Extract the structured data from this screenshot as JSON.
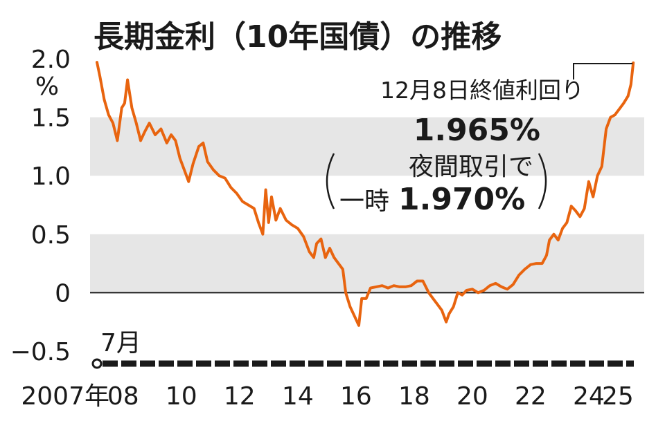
{
  "chart_data": {
    "type": "line",
    "title": "長期金利（10年国債）の推移",
    "ylabel": "%",
    "ylim": [
      -0.5,
      2.0
    ],
    "y_ticks": [
      "2.0",
      "1.5",
      "1.0",
      "0.5",
      "0",
      "−0.5"
    ],
    "y_tick_values": [
      2.0,
      1.5,
      1.0,
      0.5,
      0,
      -0.5
    ],
    "shaded_bands": [
      [
        1.0,
        1.5
      ],
      [
        0.0,
        0.5
      ]
    ],
    "x_start_label": "7月",
    "x_range": [
      2007.5,
      2025.95
    ],
    "x_ticks": [
      {
        "label": "2007年",
        "value": 2007.5
      },
      {
        "label": "08",
        "value": 2008.4
      },
      {
        "label": "10",
        "value": 2010.4
      },
      {
        "label": "12",
        "value": 2012.4
      },
      {
        "label": "14",
        "value": 2014.4
      },
      {
        "label": "16",
        "value": 2016.4
      },
      {
        "label": "18",
        "value": 2018.4
      },
      {
        "label": "20",
        "value": 2020.4
      },
      {
        "label": "22",
        "value": 2022.4
      },
      {
        "label": "24",
        "value": 2024.4
      },
      {
        "label": "25",
        "value": 2025.4
      }
    ],
    "series": [
      {
        "color": "#e8640f",
        "x": [
          2007.5,
          2007.6,
          2007.75,
          2007.9,
          2008.05,
          2008.2,
          2008.35,
          2008.45,
          2008.55,
          2008.7,
          2008.85,
          2009.0,
          2009.15,
          2009.3,
          2009.5,
          2009.7,
          2009.9,
          2010.05,
          2010.2,
          2010.35,
          2010.5,
          2010.65,
          2010.8,
          2011.0,
          2011.15,
          2011.3,
          2011.5,
          2011.7,
          2011.9,
          2012.1,
          2012.3,
          2012.5,
          2012.7,
          2012.9,
          2013.05,
          2013.2,
          2013.3,
          2013.4,
          2013.5,
          2013.65,
          2013.8,
          2014.0,
          2014.2,
          2014.4,
          2014.6,
          2014.8,
          2014.95,
          2015.05,
          2015.2,
          2015.35,
          2015.5,
          2015.65,
          2015.8,
          2015.95,
          2016.05,
          2016.2,
          2016.35,
          2016.5,
          2016.6,
          2016.75,
          2016.9,
          2017.1,
          2017.3,
          2017.5,
          2017.7,
          2017.9,
          2018.1,
          2018.3,
          2018.5,
          2018.7,
          2018.9,
          2019.05,
          2019.2,
          2019.35,
          2019.5,
          2019.6,
          2019.75,
          2019.9,
          2020.05,
          2020.2,
          2020.4,
          2020.6,
          2020.8,
          2021.0,
          2021.2,
          2021.4,
          2021.6,
          2021.8,
          2022.0,
          2022.2,
          2022.4,
          2022.6,
          2022.8,
          2022.95,
          2023.05,
          2023.2,
          2023.35,
          2023.5,
          2023.65,
          2023.8,
          2023.95,
          2024.1,
          2024.25,
          2024.4,
          2024.55,
          2024.7,
          2024.85,
          2025.0,
          2025.15,
          2025.3,
          2025.45,
          2025.6,
          2025.75,
          2025.85,
          2025.93
        ],
        "y": [
          1.97,
          1.85,
          1.65,
          1.52,
          1.45,
          1.3,
          1.58,
          1.62,
          1.82,
          1.58,
          1.45,
          1.3,
          1.38,
          1.45,
          1.35,
          1.4,
          1.28,
          1.35,
          1.3,
          1.15,
          1.05,
          0.95,
          1.1,
          1.25,
          1.28,
          1.12,
          1.05,
          1.0,
          0.98,
          0.9,
          0.85,
          0.78,
          0.75,
          0.72,
          0.6,
          0.5,
          0.88,
          0.6,
          0.82,
          0.62,
          0.72,
          0.62,
          0.58,
          0.55,
          0.48,
          0.35,
          0.3,
          0.42,
          0.46,
          0.3,
          0.38,
          0.3,
          0.25,
          0.2,
          0.0,
          -0.12,
          -0.2,
          -0.28,
          -0.05,
          -0.05,
          0.04,
          0.05,
          0.06,
          0.04,
          0.06,
          0.05,
          0.05,
          0.06,
          0.1,
          0.1,
          0.0,
          -0.05,
          -0.1,
          -0.15,
          -0.25,
          -0.18,
          -0.12,
          0.0,
          -0.02,
          0.02,
          0.03,
          0.0,
          0.02,
          0.06,
          0.08,
          0.05,
          0.03,
          0.07,
          0.15,
          0.2,
          0.24,
          0.25,
          0.25,
          0.32,
          0.45,
          0.5,
          0.45,
          0.55,
          0.6,
          0.74,
          0.7,
          0.65,
          0.72,
          0.95,
          0.82,
          1.0,
          1.08,
          1.4,
          1.5,
          1.52,
          1.57,
          1.62,
          1.68,
          1.78,
          1.965
        ]
      }
    ],
    "annotations": {
      "callout_label": "12月8日終値利回り",
      "callout_value": "1.965%",
      "night_label": "夜間取引で",
      "night_prefix": "一時",
      "night_value": "1.970%"
    }
  }
}
